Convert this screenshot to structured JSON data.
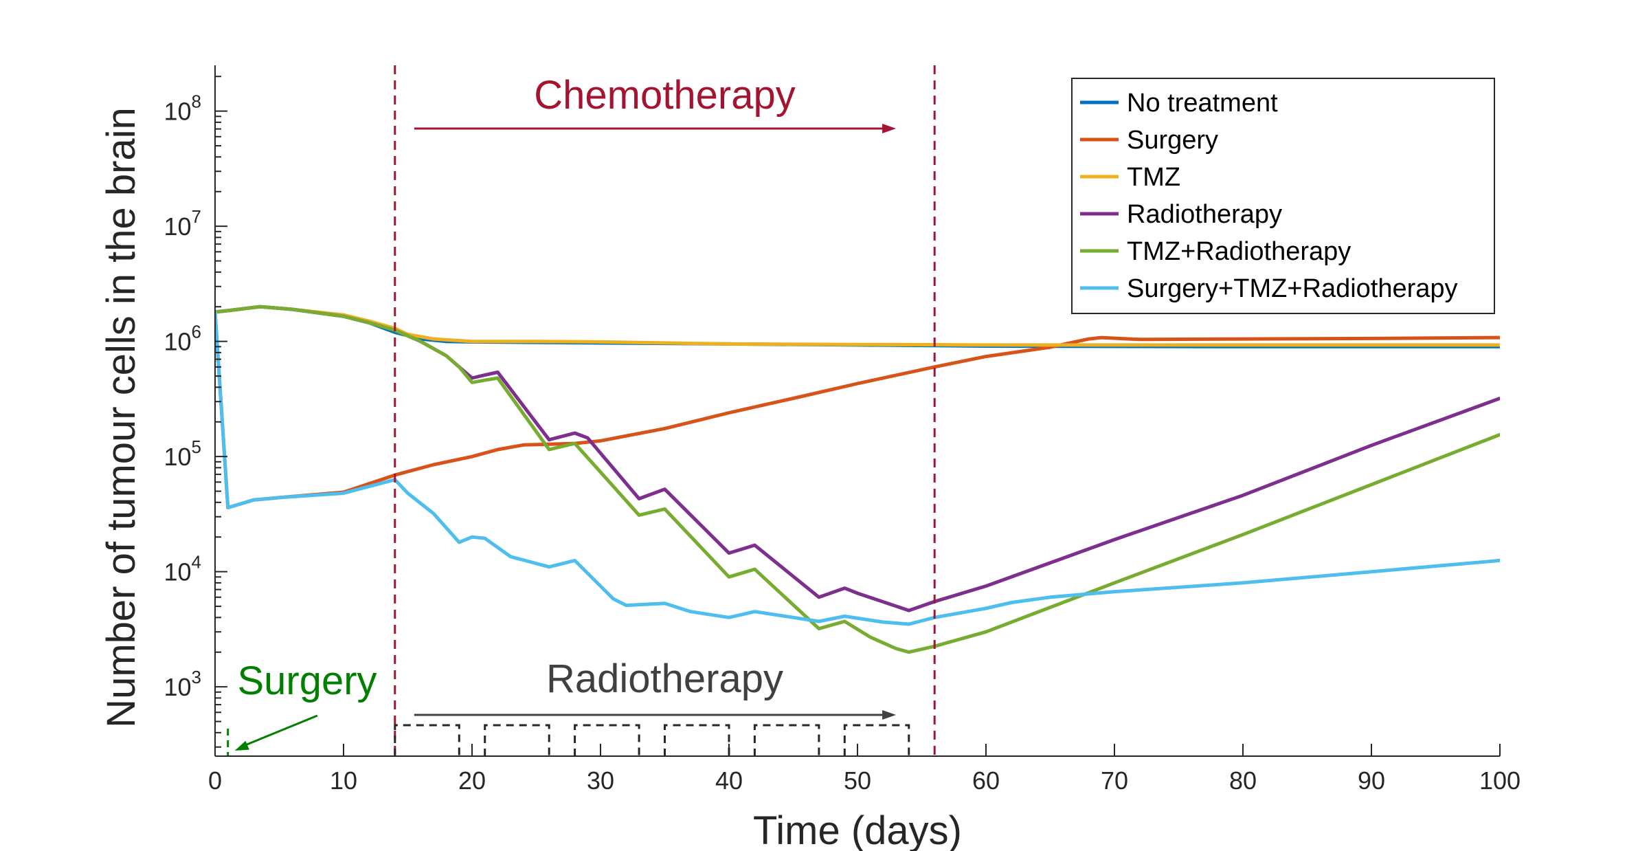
{
  "chart_data": {
    "type": "line",
    "title": "",
    "xlabel": "Time (days)",
    "ylabel": "Number of tumour cells in the brain",
    "x_scale": "linear",
    "y_scale": "log",
    "xlim": [
      0,
      100
    ],
    "ylim": [
      250,
      250000000
    ],
    "x_ticks": [
      0,
      10,
      20,
      30,
      40,
      50,
      60,
      70,
      80,
      90,
      100
    ],
    "x_tick_labels": [
      "0",
      "10",
      "20",
      "30",
      "40",
      "50",
      "60",
      "70",
      "80",
      "90",
      "100"
    ],
    "y_ticks": [
      {
        "value": 1000,
        "base": "10",
        "exp": "3"
      },
      {
        "value": 10000,
        "base": "10",
        "exp": "4"
      },
      {
        "value": 100000,
        "base": "10",
        "exp": "5"
      },
      {
        "value": 1000000,
        "base": "10",
        "exp": "6"
      },
      {
        "value": 10000000,
        "base": "10",
        "exp": "7"
      },
      {
        "value": 100000000,
        "base": "10",
        "exp": "8"
      }
    ],
    "grid": false,
    "legend_position": "top-right",
    "series": [
      {
        "name": "No treatment",
        "color": "#0072BD",
        "points": [
          [
            0,
            1800000
          ],
          [
            1,
            1850000
          ],
          [
            3.5,
            2000000
          ],
          [
            6,
            1900000
          ],
          [
            10,
            1650000
          ],
          [
            12,
            1450000
          ],
          [
            14,
            1200000
          ],
          [
            16,
            1050000
          ],
          [
            18,
            1000000
          ],
          [
            20,
            990000
          ],
          [
            25,
            980000
          ],
          [
            30,
            970000
          ],
          [
            40,
            950000
          ],
          [
            50,
            930000
          ],
          [
            56,
            920000
          ],
          [
            60,
            910000
          ],
          [
            70,
            905000
          ],
          [
            80,
            900000
          ],
          [
            90,
            900000
          ],
          [
            100,
            900000
          ]
        ]
      },
      {
        "name": "Surgery",
        "color": "#D95319",
        "points": [
          [
            0,
            1800000
          ],
          [
            1,
            36000
          ],
          [
            3,
            42000
          ],
          [
            5,
            44000
          ],
          [
            10,
            49000
          ],
          [
            14,
            69000
          ],
          [
            17,
            85000
          ],
          [
            20,
            100000
          ],
          [
            22,
            115000
          ],
          [
            24,
            126000
          ],
          [
            26,
            128000
          ],
          [
            28,
            130000
          ],
          [
            30,
            137000
          ],
          [
            35,
            175000
          ],
          [
            40,
            240000
          ],
          [
            45,
            320000
          ],
          [
            50,
            430000
          ],
          [
            56,
            600000
          ],
          [
            60,
            740000
          ],
          [
            65,
            890000
          ],
          [
            68,
            1050000
          ],
          [
            69,
            1080000
          ],
          [
            72,
            1040000
          ],
          [
            80,
            1050000
          ],
          [
            90,
            1060000
          ],
          [
            100,
            1080000
          ]
        ]
      },
      {
        "name": "TMZ",
        "color": "#EDB120",
        "points": [
          [
            0,
            1800000
          ],
          [
            1,
            1850000
          ],
          [
            3.5,
            2000000
          ],
          [
            6,
            1900000
          ],
          [
            10,
            1700000
          ],
          [
            12,
            1500000
          ],
          [
            14,
            1300000
          ],
          [
            15,
            1150000
          ],
          [
            17,
            1050000
          ],
          [
            20,
            1000000
          ],
          [
            25,
            1000000
          ],
          [
            30,
            990000
          ],
          [
            35,
            970000
          ],
          [
            40,
            950000
          ],
          [
            50,
            940000
          ],
          [
            56,
            935000
          ],
          [
            60,
            930000
          ],
          [
            70,
            930000
          ],
          [
            80,
            930000
          ],
          [
            90,
            930000
          ],
          [
            100,
            930000
          ]
        ]
      },
      {
        "name": "Radiotherapy",
        "color": "#7E2F8E",
        "points": [
          [
            0,
            1800000
          ],
          [
            1,
            1850000
          ],
          [
            3.5,
            2000000
          ],
          [
            6,
            1900000
          ],
          [
            10,
            1650000
          ],
          [
            12,
            1450000
          ],
          [
            14,
            1250000
          ],
          [
            16,
            1000000
          ],
          [
            18,
            750000
          ],
          [
            19,
            600000
          ],
          [
            20,
            480000
          ],
          [
            21,
            510000
          ],
          [
            22,
            540000
          ],
          [
            26,
            140000
          ],
          [
            28,
            160000
          ],
          [
            29,
            145000
          ],
          [
            33,
            43000
          ],
          [
            35,
            52000
          ],
          [
            40,
            14500
          ],
          [
            42,
            17000
          ],
          [
            47,
            6000
          ],
          [
            49,
            7200
          ],
          [
            50,
            6500
          ],
          [
            54,
            4600
          ],
          [
            56,
            5500
          ],
          [
            60,
            7500
          ],
          [
            70,
            19000
          ],
          [
            80,
            46000
          ],
          [
            90,
            125000
          ],
          [
            100,
            320000
          ]
        ]
      },
      {
        "name": "TMZ+Radiotherapy",
        "color": "#77AC30",
        "points": [
          [
            0,
            1800000
          ],
          [
            1,
            1850000
          ],
          [
            3.5,
            2000000
          ],
          [
            6,
            1900000
          ],
          [
            10,
            1650000
          ],
          [
            12,
            1450000
          ],
          [
            14,
            1250000
          ],
          [
            16,
            1000000
          ],
          [
            18,
            750000
          ],
          [
            19,
            600000
          ],
          [
            20,
            440000
          ],
          [
            21,
            460000
          ],
          [
            22,
            480000
          ],
          [
            26,
            115000
          ],
          [
            28,
            130000
          ],
          [
            33,
            31000
          ],
          [
            35,
            35000
          ],
          [
            40,
            9000
          ],
          [
            42,
            10500
          ],
          [
            47,
            3200
          ],
          [
            49,
            3700
          ],
          [
            51,
            2700
          ],
          [
            53,
            2150
          ],
          [
            54,
            2000
          ],
          [
            56,
            2250
          ],
          [
            60,
            3000
          ],
          [
            70,
            8000
          ],
          [
            80,
            21000
          ],
          [
            90,
            57000
          ],
          [
            100,
            155000
          ]
        ]
      },
      {
        "name": "Surgery+TMZ+Radiotherapy",
        "color": "#4DBEEE",
        "points": [
          [
            0,
            1800000
          ],
          [
            1,
            36000
          ],
          [
            3,
            42000
          ],
          [
            5,
            44000
          ],
          [
            10,
            48000
          ],
          [
            12,
            55000
          ],
          [
            14,
            63000
          ],
          [
            15,
            48000
          ],
          [
            17,
            32000
          ],
          [
            19,
            18000
          ],
          [
            20,
            20000
          ],
          [
            21,
            19500
          ],
          [
            23,
            13500
          ],
          [
            26,
            11000
          ],
          [
            28,
            12500
          ],
          [
            31,
            5800
          ],
          [
            32,
            5100
          ],
          [
            35,
            5300
          ],
          [
            37,
            4500
          ],
          [
            40,
            4000
          ],
          [
            42,
            4500
          ],
          [
            47,
            3700
          ],
          [
            49,
            4100
          ],
          [
            52,
            3650
          ],
          [
            54,
            3500
          ],
          [
            56,
            4000
          ],
          [
            60,
            4800
          ],
          [
            62,
            5400
          ],
          [
            65,
            6000
          ],
          [
            70,
            6700
          ],
          [
            80,
            8000
          ],
          [
            90,
            10000
          ],
          [
            100,
            12500
          ]
        ]
      }
    ],
    "annotations": {
      "chemotherapy": {
        "text": "Chemotherapy",
        "color": "#A2142F",
        "start_day": 14,
        "end_day": 56
      },
      "radiotherapy": {
        "text": "Radiotherapy",
        "color": "#404040",
        "start_day": 14,
        "end_day": 54,
        "pulses": [
          [
            14,
            19
          ],
          [
            21,
            26
          ],
          [
            28,
            33
          ],
          [
            35,
            40
          ],
          [
            42,
            47
          ],
          [
            49,
            54
          ]
        ]
      },
      "surgery": {
        "text": "Surgery",
        "color": "#007F00",
        "day": 1
      }
    }
  }
}
